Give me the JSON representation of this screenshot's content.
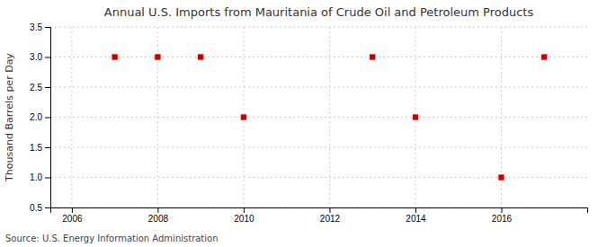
{
  "chart_data": {
    "type": "scatter",
    "title": "Annual U.S. Imports from Mauritania of Crude Oil and Petroleum Products",
    "ylabel": "Thousand Barrels per Day",
    "source": "Source: U.S. Energy Information Administration",
    "x": [
      2007,
      2008,
      2009,
      2010,
      2013,
      2014,
      2016,
      2017
    ],
    "values": [
      3.0,
      3.0,
      3.0,
      2.0,
      3.0,
      2.0,
      1.0,
      3.0
    ],
    "xlim": [
      2005.5,
      2018.0
    ],
    "ylim": [
      0.5,
      3.5
    ],
    "xticks": [
      2006,
      2008,
      2010,
      2012,
      2014,
      2016
    ],
    "yticks": [
      0.5,
      {
        "value": 1.0,
        "label": "1.0"
      },
      1.5,
      {
        "value": 2.0,
        "label": "2.0"
      },
      2.5,
      {
        "value": 3.0,
        "label": "3.0"
      },
      3.5
    ],
    "color": "#cc0000",
    "marker": "square",
    "grid": true
  }
}
